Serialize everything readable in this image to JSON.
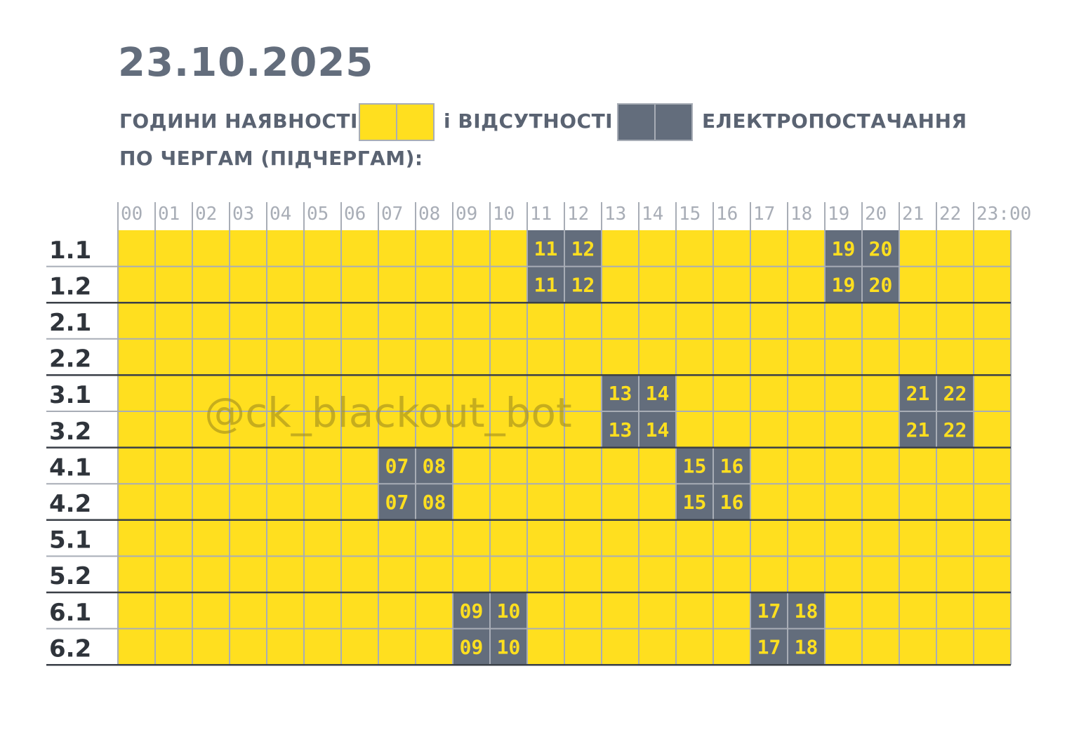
{
  "title": "23.10.2025",
  "legend": {
    "available_label": "ГОДИНИ НАЯВНОСТІ",
    "absent_label": "і ВІДСУТНОСТІ",
    "power_label": "ЕЛЕКТРОПОСТАЧАННЯ",
    "queues_label": "ПО ЧЕРГАМ (ПІДЧЕРГАМ):"
  },
  "watermark": "@ck_blackout_bot",
  "colors": {
    "on": "#ffdf1f",
    "off": "#636d7c",
    "grid": "#a8adb6",
    "separator": "#3a3f47",
    "off_text": "#ffdf1f",
    "header_text": "#a8adb6",
    "row_label": "#2f343b"
  },
  "chart_data": {
    "type": "heatmap",
    "hour_labels": [
      "00",
      "01",
      "02",
      "03",
      "04",
      "05",
      "06",
      "07",
      "08",
      "09",
      "10",
      "11",
      "12",
      "13",
      "14",
      "15",
      "16",
      "17",
      "18",
      "19",
      "20",
      "21",
      "22",
      "23:00"
    ],
    "rows": [
      {
        "label": "1.1",
        "off_hours": [
          "11",
          "12",
          "19",
          "20"
        ]
      },
      {
        "label": "1.2",
        "off_hours": [
          "11",
          "12",
          "19",
          "20"
        ]
      },
      {
        "label": "2.1",
        "off_hours": []
      },
      {
        "label": "2.2",
        "off_hours": []
      },
      {
        "label": "3.1",
        "off_hours": [
          "13",
          "14",
          "21",
          "22"
        ]
      },
      {
        "label": "3.2",
        "off_hours": [
          "13",
          "14",
          "21",
          "22"
        ]
      },
      {
        "label": "4.1",
        "off_hours": [
          "07",
          "08",
          "15",
          "16"
        ]
      },
      {
        "label": "4.2",
        "off_hours": [
          "07",
          "08",
          "15",
          "16"
        ]
      },
      {
        "label": "5.1",
        "off_hours": []
      },
      {
        "label": "5.2",
        "off_hours": []
      },
      {
        "label": "6.1",
        "off_hours": [
          "09",
          "10",
          "17",
          "18"
        ]
      },
      {
        "label": "6.2",
        "off_hours": [
          "09",
          "10",
          "17",
          "18"
        ]
      }
    ]
  }
}
